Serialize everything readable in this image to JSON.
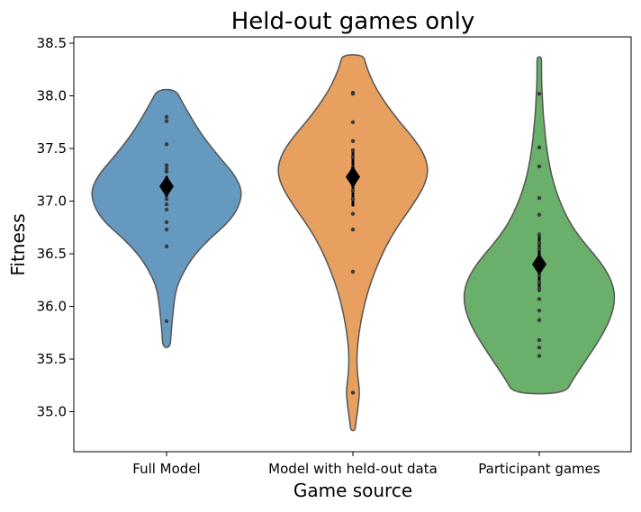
{
  "chart_data": {
    "type": "violin",
    "title": "Held-out games only",
    "xlabel": "Game source",
    "ylabel": "Fitness",
    "ylim": [
      34.62,
      38.56
    ],
    "yticks": [
      "35.0",
      "35.5",
      "36.0",
      "36.5",
      "37.0",
      "37.5",
      "38.0",
      "38.5"
    ],
    "categories": [
      "Full Model",
      "Model with held-out data",
      "Participant games"
    ],
    "grid": false,
    "series": [
      {
        "name": "Full Model",
        "color": "#6699bf",
        "range": [
          35.61,
          38.06
        ],
        "density_profile": [
          [
            35.61,
            0.05
          ],
          [
            35.75,
            0.06
          ],
          [
            35.9,
            0.08
          ],
          [
            36.05,
            0.1
          ],
          [
            36.2,
            0.14
          ],
          [
            36.35,
            0.24
          ],
          [
            36.5,
            0.38
          ],
          [
            36.65,
            0.58
          ],
          [
            36.8,
            0.82
          ],
          [
            36.95,
            0.96
          ],
          [
            37.1,
            1.0
          ],
          [
            37.25,
            0.9
          ],
          [
            37.4,
            0.72
          ],
          [
            37.55,
            0.55
          ],
          [
            37.7,
            0.4
          ],
          [
            37.85,
            0.28
          ],
          [
            37.95,
            0.2
          ],
          [
            38.06,
            0.12
          ]
        ],
        "points": [
          35.86,
          36.57,
          36.73,
          36.8,
          36.92,
          36.97,
          37.02,
          37.1,
          37.12,
          37.15,
          37.18,
          37.2,
          37.28,
          37.31,
          37.34,
          37.54,
          37.76,
          37.8
        ],
        "mean": 37.14,
        "ci": [
          37.04,
          37.24
        ]
      },
      {
        "name": "Model with held-out data",
        "color": "#e8a060",
        "range": [
          34.82,
          38.39
        ],
        "density_profile": [
          [
            34.82,
            0.03
          ],
          [
            34.9,
            0.04
          ],
          [
            35.05,
            0.07
          ],
          [
            35.2,
            0.09
          ],
          [
            35.35,
            0.06
          ],
          [
            35.55,
            0.05
          ],
          [
            35.75,
            0.08
          ],
          [
            35.95,
            0.13
          ],
          [
            36.15,
            0.2
          ],
          [
            36.35,
            0.3
          ],
          [
            36.55,
            0.42
          ],
          [
            36.75,
            0.58
          ],
          [
            36.95,
            0.78
          ],
          [
            37.15,
            0.95
          ],
          [
            37.3,
            1.0
          ],
          [
            37.45,
            0.94
          ],
          [
            37.6,
            0.8
          ],
          [
            37.75,
            0.62
          ],
          [
            37.9,
            0.46
          ],
          [
            38.05,
            0.32
          ],
          [
            38.2,
            0.22
          ],
          [
            38.3,
            0.17
          ],
          [
            38.39,
            0.14
          ]
        ],
        "points": [
          35.18,
          36.33,
          36.73,
          36.88,
          37.02,
          37.1,
          37.15,
          37.18,
          37.2,
          37.22,
          37.24,
          37.26,
          37.29,
          37.32,
          37.42,
          37.48,
          37.57,
          37.75,
          38.02,
          38.03
        ],
        "mean": 37.23,
        "ci": [
          36.95,
          37.5
        ]
      },
      {
        "name": "Participant games",
        "color": "#6aaf6a",
        "range": [
          35.17,
          38.37
        ],
        "density_profile": [
          [
            35.17,
            0.34
          ],
          [
            35.3,
            0.44
          ],
          [
            35.45,
            0.58
          ],
          [
            35.6,
            0.72
          ],
          [
            35.75,
            0.85
          ],
          [
            35.9,
            0.95
          ],
          [
            36.05,
            1.0
          ],
          [
            36.2,
            0.98
          ],
          [
            36.35,
            0.88
          ],
          [
            36.5,
            0.72
          ],
          [
            36.65,
            0.54
          ],
          [
            36.8,
            0.4
          ],
          [
            36.95,
            0.3
          ],
          [
            37.1,
            0.22
          ],
          [
            37.25,
            0.16
          ],
          [
            37.4,
            0.12
          ],
          [
            37.55,
            0.09
          ],
          [
            37.7,
            0.07
          ],
          [
            37.85,
            0.05
          ],
          [
            38.0,
            0.04
          ],
          [
            38.15,
            0.03
          ],
          [
            38.3,
            0.03
          ],
          [
            38.37,
            0.03
          ]
        ],
        "points": [
          35.53,
          35.61,
          35.68,
          35.87,
          35.96,
          36.07,
          36.17,
          36.23,
          36.3,
          36.36,
          36.45,
          36.55,
          36.6,
          36.68,
          36.87,
          37.03,
          37.33,
          37.51,
          38.02
        ],
        "mean": 36.4,
        "ci": [
          36.14,
          36.7
        ]
      }
    ],
    "point_color": "#3a3a3a",
    "mean_marker_color": "#000000",
    "outline_color": "#555555"
  }
}
